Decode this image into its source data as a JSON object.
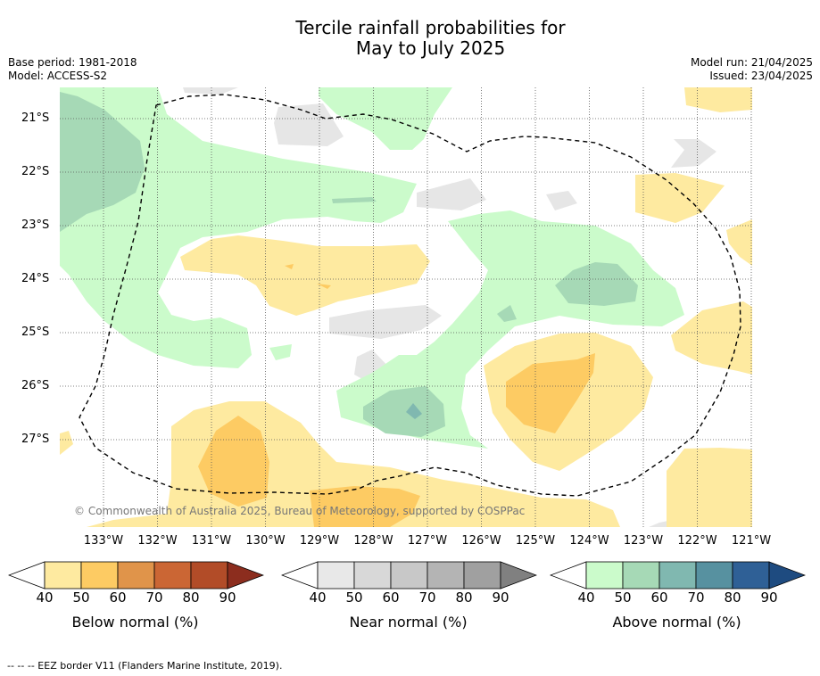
{
  "title_line1": "Tercile rainfall probabilities for",
  "title_line2": "May to July 2025",
  "base_period": "Base period: 1981-2018",
  "model": "Model: ACCESS-S2",
  "model_run": "Model run: 21/04/2025",
  "issued": "Issued: 23/04/2025",
  "copyright": "© Commonwealth of Australia 2025, Bureau of Meteorology, supported by COSPPac",
  "footnote": "-- -- -- EEZ border V11 (Flanders Marine Institute, 2019).",
  "lat_labels": [
    "21°S",
    "22°S",
    "23°S",
    "24°S",
    "25°S",
    "26°S",
    "27°S"
  ],
  "lon_labels": [
    "133°W",
    "132°W",
    "131°W",
    "130°W",
    "129°W",
    "128°W",
    "127°W",
    "126°W",
    "125°W",
    "124°W",
    "123°W",
    "122°W",
    "121°W"
  ],
  "colorbars": [
    {
      "label": "Below normal (%)",
      "ticks": [
        "40",
        "50",
        "60",
        "70",
        "80",
        "90"
      ],
      "colors": [
        "#ffffff",
        "#feeaa0",
        "#fdcb63",
        "#e0944a",
        "#cb6634",
        "#b24c28",
        "#8c2d1e"
      ]
    },
    {
      "label": "Near normal (%)",
      "ticks": [
        "40",
        "50",
        "60",
        "70",
        "80",
        "90"
      ],
      "colors": [
        "#ffffff",
        "#e8e8e8",
        "#d8d8d8",
        "#c8c8c8",
        "#b4b4b4",
        "#a0a0a0",
        "#808080"
      ]
    },
    {
      "label": "Above normal (%)",
      "ticks": [
        "40",
        "50",
        "60",
        "70",
        "80",
        "90"
      ],
      "colors": [
        "#ffffff",
        "#cbfbcb",
        "#a6d9b6",
        "#80b8b0",
        "#5791a0",
        "#2f6096",
        "#1e4b80"
      ]
    }
  ]
}
